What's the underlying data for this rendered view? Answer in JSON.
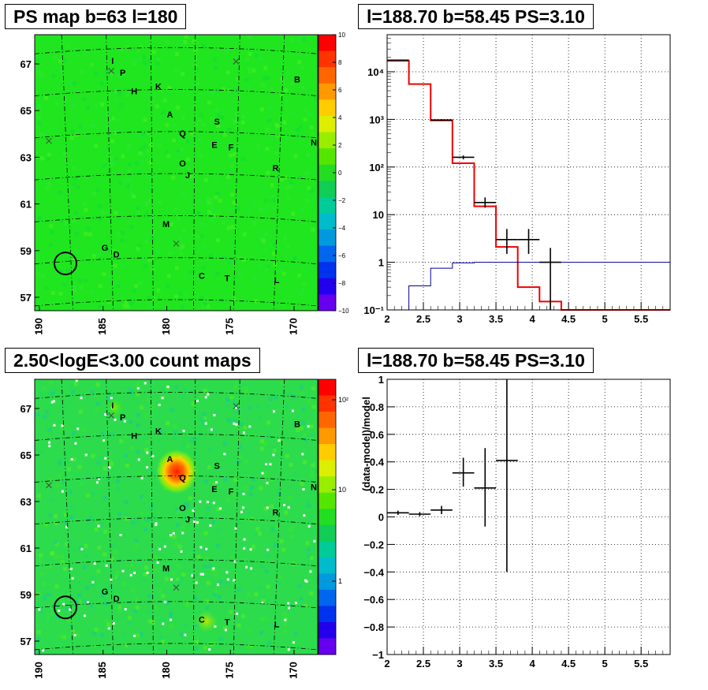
{
  "panels": {
    "ps_map": {
      "title": "PS map b=63 l=180",
      "colorbar_ticks": [
        "10",
        "8",
        "6",
        "4",
        "2",
        "0",
        "−2",
        "−4",
        "−6",
        "−8",
        "−10"
      ],
      "x_ticks": [
        "190",
        "185",
        "180",
        "175",
        "170"
      ],
      "y_ticks": [
        "67",
        "65",
        "63",
        "61",
        "59",
        "57"
      ]
    },
    "count_map": {
      "title": "2.50<logE<3.00 count maps",
      "colorbar_ticks": [
        "10²",
        "10",
        "1"
      ],
      "x_ticks": [
        "190",
        "185",
        "180",
        "175",
        "170"
      ],
      "y_ticks": [
        "67",
        "65",
        "63",
        "61",
        "59",
        "57"
      ]
    },
    "spectrum": {
      "title": "l=188.70 b=58.45 PS=3.10"
    },
    "residual": {
      "title": "l=188.70 b=58.45 PS=3.10"
    }
  },
  "sources": [
    {
      "label": "I",
      "l": 185.0,
      "b": 67.0
    },
    {
      "label": "P",
      "l": 184.2,
      "b": 66.5
    },
    {
      "label": "H",
      "l": 183.3,
      "b": 65.7
    },
    {
      "label": "K",
      "l": 181.4,
      "b": 65.9
    },
    {
      "label": "B",
      "l": 170.5,
      "b": 66.2
    },
    {
      "label": "A",
      "l": 180.5,
      "b": 64.7
    },
    {
      "label": "S",
      "l": 176.8,
      "b": 64.4
    },
    {
      "label": "Q",
      "l": 179.5,
      "b": 63.9
    },
    {
      "label": "N",
      "l": 169.2,
      "b": 63.5
    },
    {
      "label": "E",
      "l": 177.0,
      "b": 63.4
    },
    {
      "label": "F",
      "l": 175.7,
      "b": 63.3
    },
    {
      "label": "O",
      "l": 179.5,
      "b": 62.6
    },
    {
      "label": "J",
      "l": 179.1,
      "b": 62.1
    },
    {
      "label": "R",
      "l": 172.2,
      "b": 62.4
    },
    {
      "label": "M",
      "l": 180.8,
      "b": 60.0
    },
    {
      "label": "G",
      "l": 185.6,
      "b": 59.0
    },
    {
      "label": "D",
      "l": 184.7,
      "b": 58.7
    },
    {
      "label": "C",
      "l": 178.0,
      "b": 57.8
    },
    {
      "label": "T",
      "l": 176.0,
      "b": 57.7
    },
    {
      "label": "L",
      "l": 172.1,
      "b": 57.6
    }
  ],
  "crosses": [
    {
      "l": 185.1,
      "b": 66.7
    },
    {
      "l": 175.3,
      "b": 67.1
    },
    {
      "l": 190.0,
      "b": 63.7
    },
    {
      "l": 180.0,
      "b": 59.3
    }
  ],
  "target_circle": {
    "l": 188.7,
    "b": 58.45
  },
  "chart_data": [
    {
      "type": "step",
      "title": "l=188.70 b=58.45 PS=3.10",
      "xlabel": "",
      "ylabel": "",
      "xlim": [
        2,
        5.9
      ],
      "ylim": [
        0.1,
        60000
      ],
      "yscale": "log",
      "grid": true,
      "x_ticks": [
        "2",
        "2.5",
        "3",
        "3.5",
        "4",
        "4.5",
        "5",
        "5.5"
      ],
      "y_ticks": [
        "10⁻¹",
        "1",
        "10",
        "10²",
        "10³",
        "10⁴"
      ],
      "series": [
        {
          "color": "#ee0000",
          "edges": [
            2.0,
            2.3,
            2.6,
            2.9,
            3.2,
            3.5,
            3.8,
            4.1,
            4.4,
            4.7,
            5.0,
            5.3,
            5.6,
            5.9
          ],
          "values": [
            17000,
            5500,
            950,
            120,
            15,
            2.1,
            0.3,
            0.15,
            0.1,
            0.1,
            0.1,
            0.1,
            0.1
          ]
        },
        {
          "color": "#000099",
          "edges": [
            2.0,
            2.3,
            2.6,
            2.9,
            3.2,
            3.5,
            3.8,
            4.1,
            4.4,
            4.7,
            5.0,
            5.3,
            5.6,
            5.9
          ],
          "values": [
            0.1,
            0.32,
            0.75,
            0.97,
            1.0,
            1.0,
            1.0,
            1.0,
            1.0,
            1.0,
            1.0,
            1.0,
            1.0
          ]
        },
        {
          "color": "#000000",
          "points": [
            {
              "x": 2.15,
              "xerr": 0.15,
              "y": 17500,
              "ylo": 17300,
              "yhi": 17700
            },
            {
              "x": 2.75,
              "xerr": 0.15,
              "y": 970,
              "ylo": 930,
              "yhi": 1010
            },
            {
              "x": 3.05,
              "xerr": 0.15,
              "y": 160,
              "ylo": 145,
              "yhi": 175
            },
            {
              "x": 3.35,
              "xerr": 0.15,
              "y": 18,
              "ylo": 14,
              "yhi": 23
            },
            {
              "x": 3.65,
              "xerr": 0.15,
              "y": 3.0,
              "ylo": 1.5,
              "yhi": 5.0
            },
            {
              "x": 3.95,
              "xerr": 0.15,
              "y": 3.0,
              "ylo": 1.5,
              "yhi": 5.0
            },
            {
              "x": 4.25,
              "xerr": 0.15,
              "y": 1.0,
              "ylo": 0.1,
              "yhi": 2.0
            }
          ]
        }
      ]
    },
    {
      "type": "scatter",
      "title": "l=188.70 b=58.45 PS=3.10",
      "xlabel": "",
      "ylabel": "(data-model)/model",
      "xlim": [
        2,
        5.9
      ],
      "ylim": [
        -1,
        1
      ],
      "grid": true,
      "x_ticks": [
        "2",
        "2.5",
        "3",
        "3.5",
        "4",
        "4.5",
        "5",
        "5.5"
      ],
      "y_ticks": [
        "−1",
        "−0.8",
        "−0.6",
        "−0.4",
        "−0.2",
        "0",
        "0.2",
        "0.4",
        "0.6",
        "0.8",
        "1"
      ],
      "series": [
        {
          "color": "#000000",
          "points": [
            {
              "x": 2.15,
              "xerr": 0.15,
              "y": 0.03,
              "ylo": 0.015,
              "yhi": 0.045
            },
            {
              "x": 2.45,
              "xerr": 0.15,
              "y": 0.02,
              "ylo": 0.005,
              "yhi": 0.035
            },
            {
              "x": 2.75,
              "xerr": 0.15,
              "y": 0.05,
              "ylo": 0.02,
              "yhi": 0.08
            },
            {
              "x": 3.05,
              "xerr": 0.15,
              "y": 0.32,
              "ylo": 0.22,
              "yhi": 0.43
            },
            {
              "x": 3.35,
              "xerr": 0.15,
              "y": 0.21,
              "ylo": -0.07,
              "yhi": 0.5
            },
            {
              "x": 3.65,
              "xerr": 0.15,
              "y": 0.41,
              "ylo": -0.4,
              "yhi": 1.0
            }
          ]
        }
      ]
    }
  ]
}
